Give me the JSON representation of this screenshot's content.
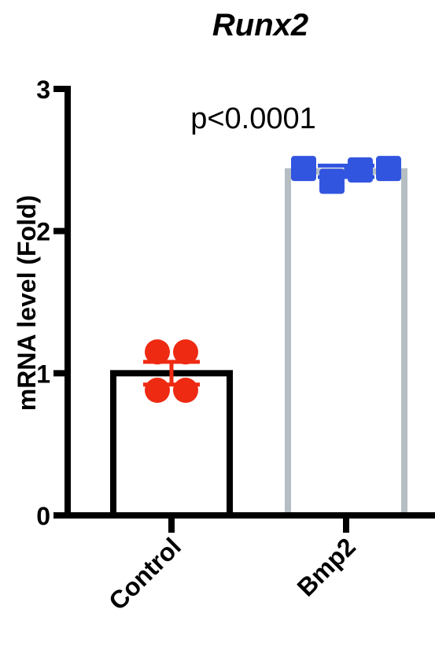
{
  "chart_data": {
    "type": "bar",
    "title": "Runx2",
    "ylabel": "mRNA level (Fold)",
    "xlabel": "",
    "ylim": [
      0,
      3
    ],
    "yticks": [
      0,
      1,
      2,
      3
    ],
    "categories": [
      "Control",
      "Bmp2"
    ],
    "values": [
      1.0,
      2.42
    ],
    "error": [
      0.08,
      0.04
    ],
    "points": [
      [
        1.15,
        1.15,
        0.88,
        0.88
      ],
      [
        2.44,
        2.35,
        2.43,
        2.44
      ]
    ],
    "annotation": "p<0.0001",
    "colors": {
      "control_bar": "#000000",
      "bmp2_bar": "#b4bec3",
      "control_points": "#ee2a12",
      "bmp2_points": "#3255e0",
      "axis": "#000000"
    }
  }
}
